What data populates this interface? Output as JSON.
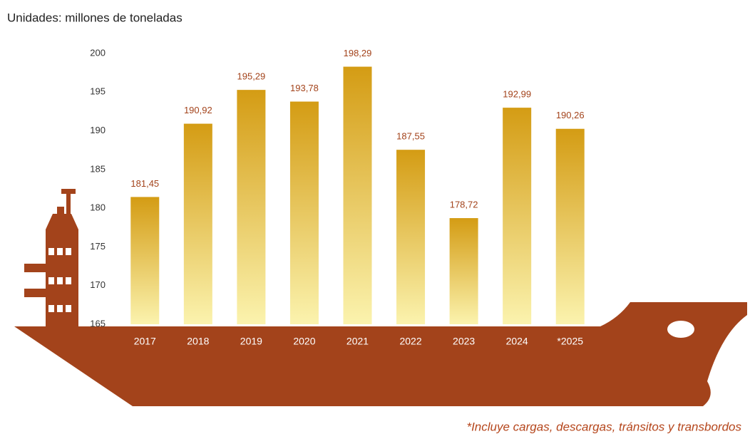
{
  "chart_data": {
    "type": "bar",
    "subtitle": "Unidades: millones de toneladas",
    "categories": [
      "2017",
      "2018",
      "2019",
      "2020",
      "2021",
      "2022",
      "2023",
      "2024",
      "*2025"
    ],
    "values": [
      181.45,
      190.92,
      195.29,
      193.78,
      198.29,
      187.55,
      178.72,
      192.99,
      190.26
    ],
    "value_labels": [
      "181,45",
      "190,92",
      "195,29",
      "193,78",
      "198,29",
      "187,55",
      "178,72",
      "192,99",
      "190,26"
    ],
    "color": "#d9a11e",
    "ylim": [
      165,
      200
    ],
    "yticks": [
      165,
      170,
      175,
      180,
      185,
      190,
      195,
      200
    ],
    "grid": false,
    "note": "*Incluye cargas, descargas, tránsitos y transbordos"
  }
}
